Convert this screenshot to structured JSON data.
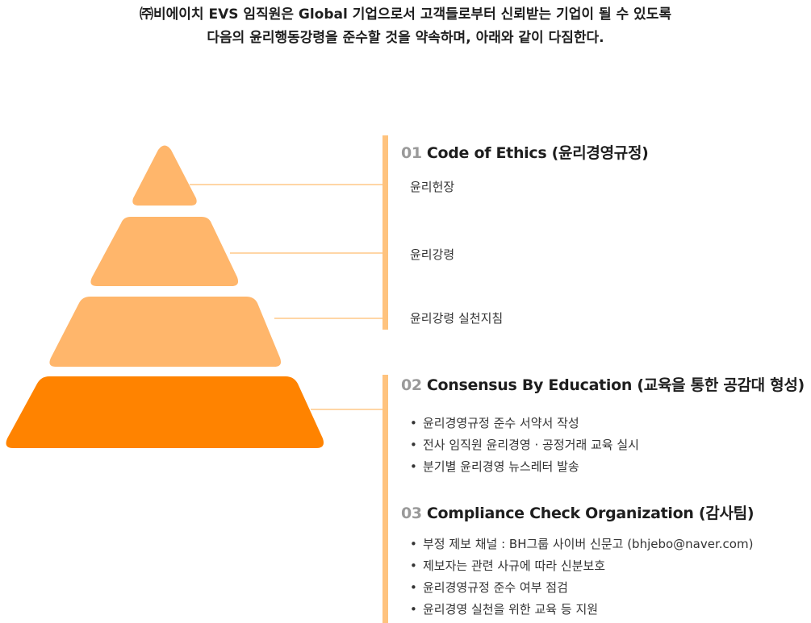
{
  "intro": {
    "line1": "㈜비에이치 EVS 임직원은 Global 기업으로서 고객들로부터 신뢰받는 기업이 될 수 있도록",
    "line2": "다음의 윤리행동강령을 준수할 것을 약속하며, 아래와 같이 다짐한다."
  },
  "colors": {
    "tier_light": "#FFB66B",
    "tier_dark": "#FF8300",
    "bar": "#FFC37E",
    "connector": "#FFD6A6",
    "number": "#9a9a9a"
  },
  "sections": [
    {
      "number": "01",
      "title": "Code of Ethics (윤리경영규정)",
      "items": [
        "윤리헌장",
        "윤리강령",
        "윤리강령 실천지침"
      ]
    },
    {
      "number": "02",
      "title": "Consensus By Education (교육을 통한 공감대 형성)",
      "items": [
        "윤리경영규정 준수 서약서 작성",
        "전사 임직원 윤리경영 · 공정거래 교육 실시",
        "분기별 윤리경영 뉴스레터 발송"
      ]
    },
    {
      "number": "03",
      "title": "Compliance Check Organization (감사팀)",
      "items": [
        "부정 제보 채널 : BH그룹 사이버 신문고 (bhjebo@naver.com)",
        "제보자는 관련 사규에 따라 신분보호",
        "윤리경영규정 준수 여부 점검",
        "윤리경영 실천을 위한 교육 등 지원"
      ]
    }
  ]
}
